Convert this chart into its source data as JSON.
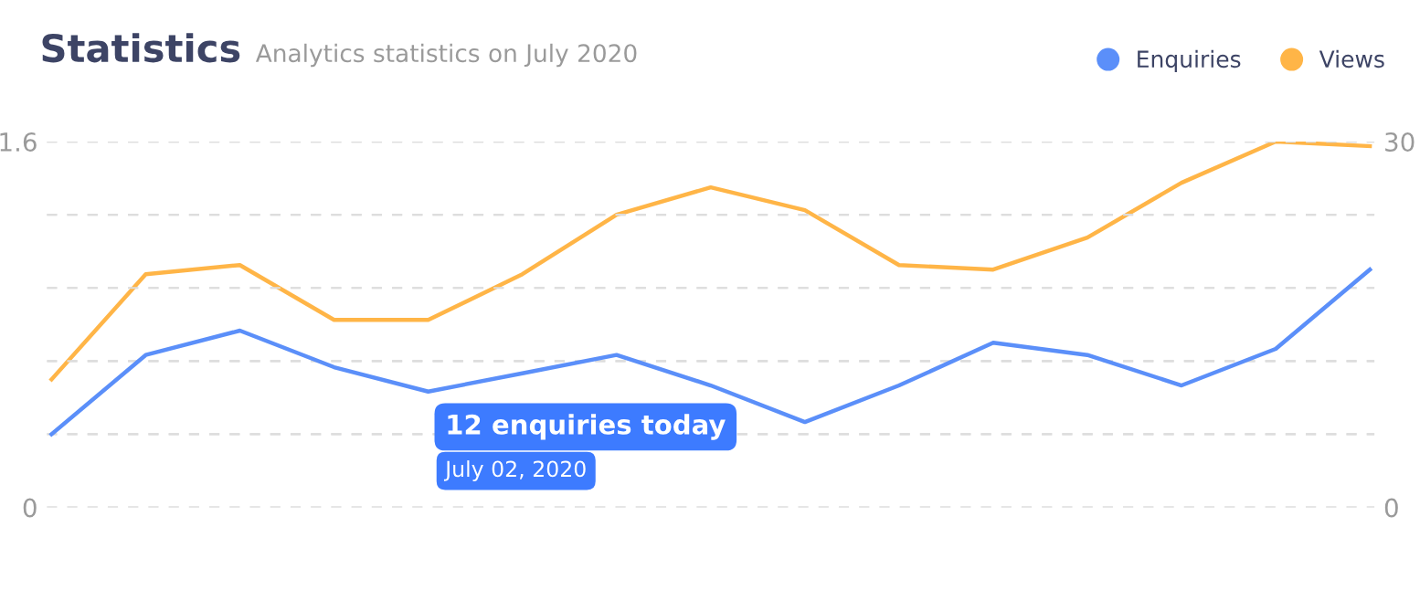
{
  "chart_data": {
    "type": "line",
    "title": "Statistics",
    "subtitle": "Analytics statistics on July 2020",
    "categories": [
      null,
      null,
      null,
      null,
      null,
      null,
      null,
      null,
      null,
      null,
      null,
      null,
      null,
      null,
      null
    ],
    "series": [
      {
        "name": "Enquiries",
        "color": "#5b8ff9",
        "axis": "y2",
        "values": [
          6,
          12.5,
          14.5,
          11.5,
          9.5,
          11,
          12.5,
          10,
          7,
          10,
          13.5,
          12.5,
          10,
          13,
          19.5
        ]
      },
      {
        "name": "Views",
        "color": "#ffb547",
        "values": [
          0.56,
          1.02,
          1.06,
          0.82,
          0.82,
          1.02,
          1.28,
          1.4,
          1.3,
          1.06,
          1.04,
          1.18,
          1.42,
          1.6,
          1.58
        ]
      }
    ],
    "ylim": [
      0,
      1.6
    ],
    "yticks": [
      0,
      {
        "value": 0.32,
        "label": null
      },
      {
        "value": 0.64,
        "label": null
      },
      {
        "value": 0.96,
        "label": null
      },
      {
        "value": 1.28,
        "label": null
      },
      1.6
    ],
    "y2lim": [
      0,
      30
    ],
    "y2ticks": [
      0,
      {
        "value": 6,
        "label": null
      },
      {
        "value": 12,
        "label": null
      },
      {
        "value": 18,
        "label": null
      },
      {
        "value": 24,
        "label": null
      },
      30
    ],
    "grid": "y",
    "legend": "top right",
    "marker": "none",
    "line_style": "solid",
    "annotations": [
      "12 enquiries today",
      "July 02, 2020"
    ]
  }
}
